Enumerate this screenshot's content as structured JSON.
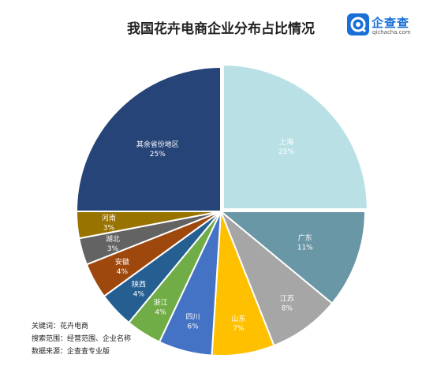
{
  "title": "我国花卉电商企业分布占比情况",
  "brand": {
    "name": "企查查",
    "url": "qichacha.com",
    "icon": "brand-logo-icon",
    "color": "#1a6fd6"
  },
  "notes": [
    "关键词：花卉电商",
    "搜索范围：经营范围、企业名称",
    "数据来源：企查查专业版"
  ],
  "chart_data": {
    "type": "pie",
    "title": "我国花卉电商企业分布占比情况",
    "slices": [
      {
        "label": "上海",
        "value": 25,
        "display": "25%",
        "color": "#b9e1e5"
      },
      {
        "label": "广东",
        "value": 11,
        "display": "11%",
        "color": "#6a97a6"
      },
      {
        "label": "江苏",
        "value": 8,
        "display": "8%",
        "color": "#a6a6a6"
      },
      {
        "label": "山东",
        "value": 7,
        "display": "7%",
        "color": "#ffc000"
      },
      {
        "label": "四川",
        "value": 6,
        "display": "6%",
        "color": "#4472c4"
      },
      {
        "label": "浙江",
        "value": 4,
        "display": "4%",
        "color": "#70ad47"
      },
      {
        "label": "陕西",
        "value": 4,
        "display": "4%",
        "color": "#255e91"
      },
      {
        "label": "安徽",
        "value": 4,
        "display": "4%",
        "color": "#9e480e"
      },
      {
        "label": "湖北",
        "value": 3,
        "display": "3%",
        "color": "#636363"
      },
      {
        "label": "河南",
        "value": 3,
        "display": "3%",
        "color": "#997300"
      },
      {
        "label": "其余省份地区",
        "value": 25,
        "display": "25%",
        "color": "#264478"
      }
    ]
  }
}
